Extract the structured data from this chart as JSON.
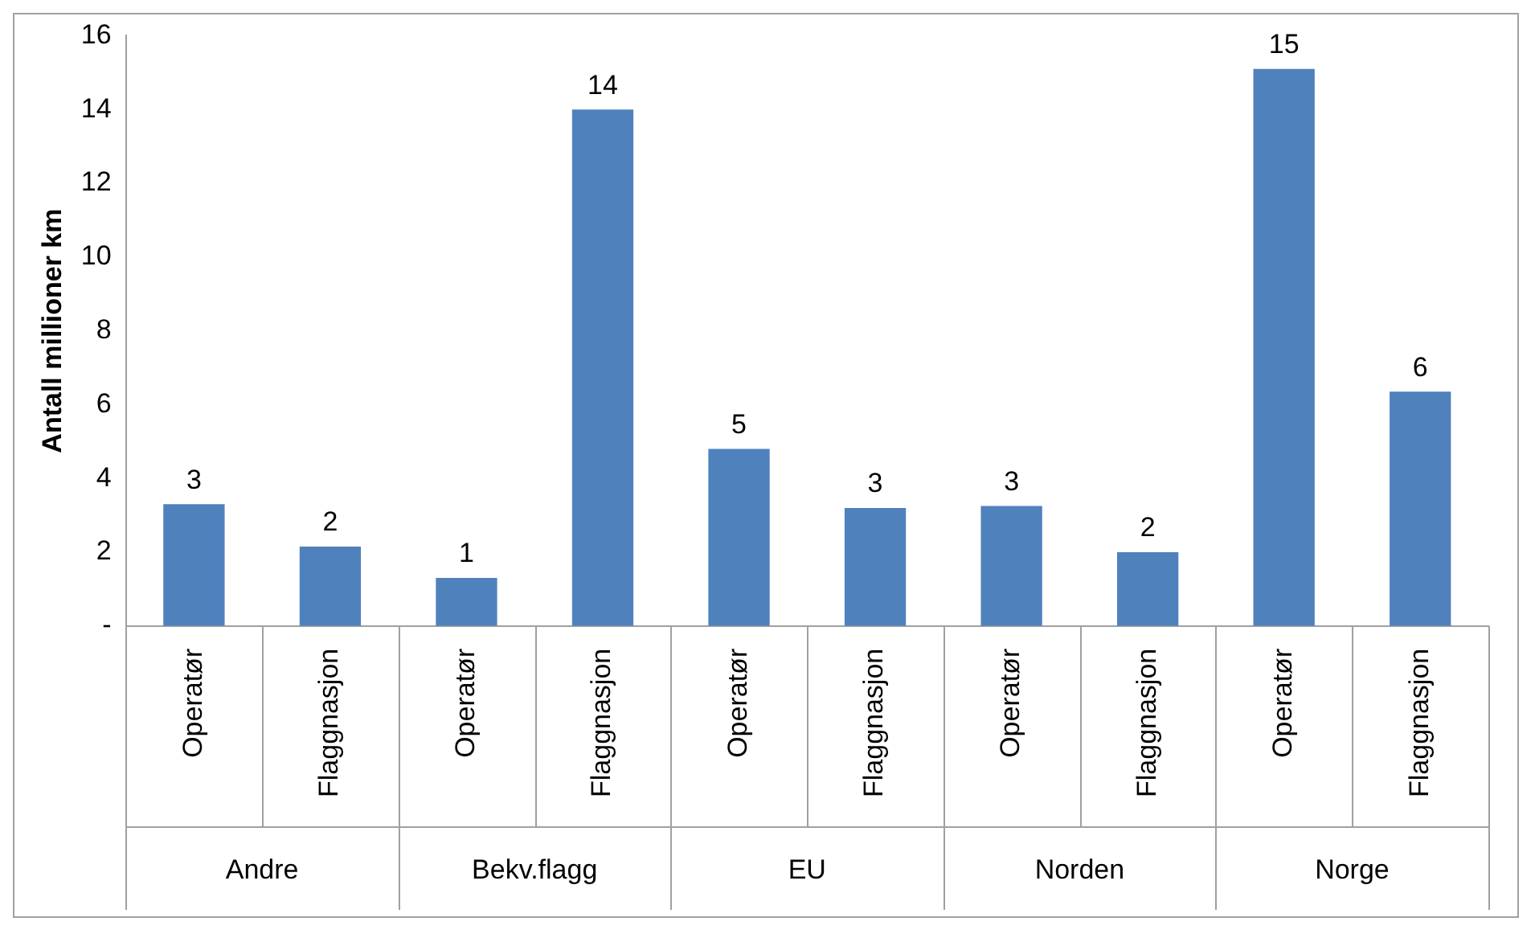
{
  "chart_data": {
    "type": "bar",
    "ylabel": "Antall millioner km",
    "categories": [
      "Operatør",
      "Flaggnasjon",
      "Operatør",
      "Flaggnasjon",
      "Operatør",
      "Flaggnasjon",
      "Operatør",
      "Flaggnasjon",
      "Operatør",
      "Flaggnasjon"
    ],
    "values": [
      3.3,
      2.15,
      1.3,
      14.0,
      4.8,
      3.2,
      3.25,
      2.0,
      15.1,
      6.35
    ],
    "value_labels": [
      "3",
      "2",
      "1",
      "14",
      "5",
      "3",
      "3",
      "2",
      "15",
      "6"
    ],
    "color": "#4f81bd",
    "ylim": [
      0,
      16
    ],
    "yticks": [
      {
        "value": 0,
        "label": "-"
      },
      2,
      4,
      6,
      8,
      10,
      12,
      14,
      16
    ],
    "annotations": [
      "Andre",
      "Bekv.flagg",
      "EU",
      "Norden",
      "Norge"
    ],
    "grid": false,
    "legend": false
  }
}
